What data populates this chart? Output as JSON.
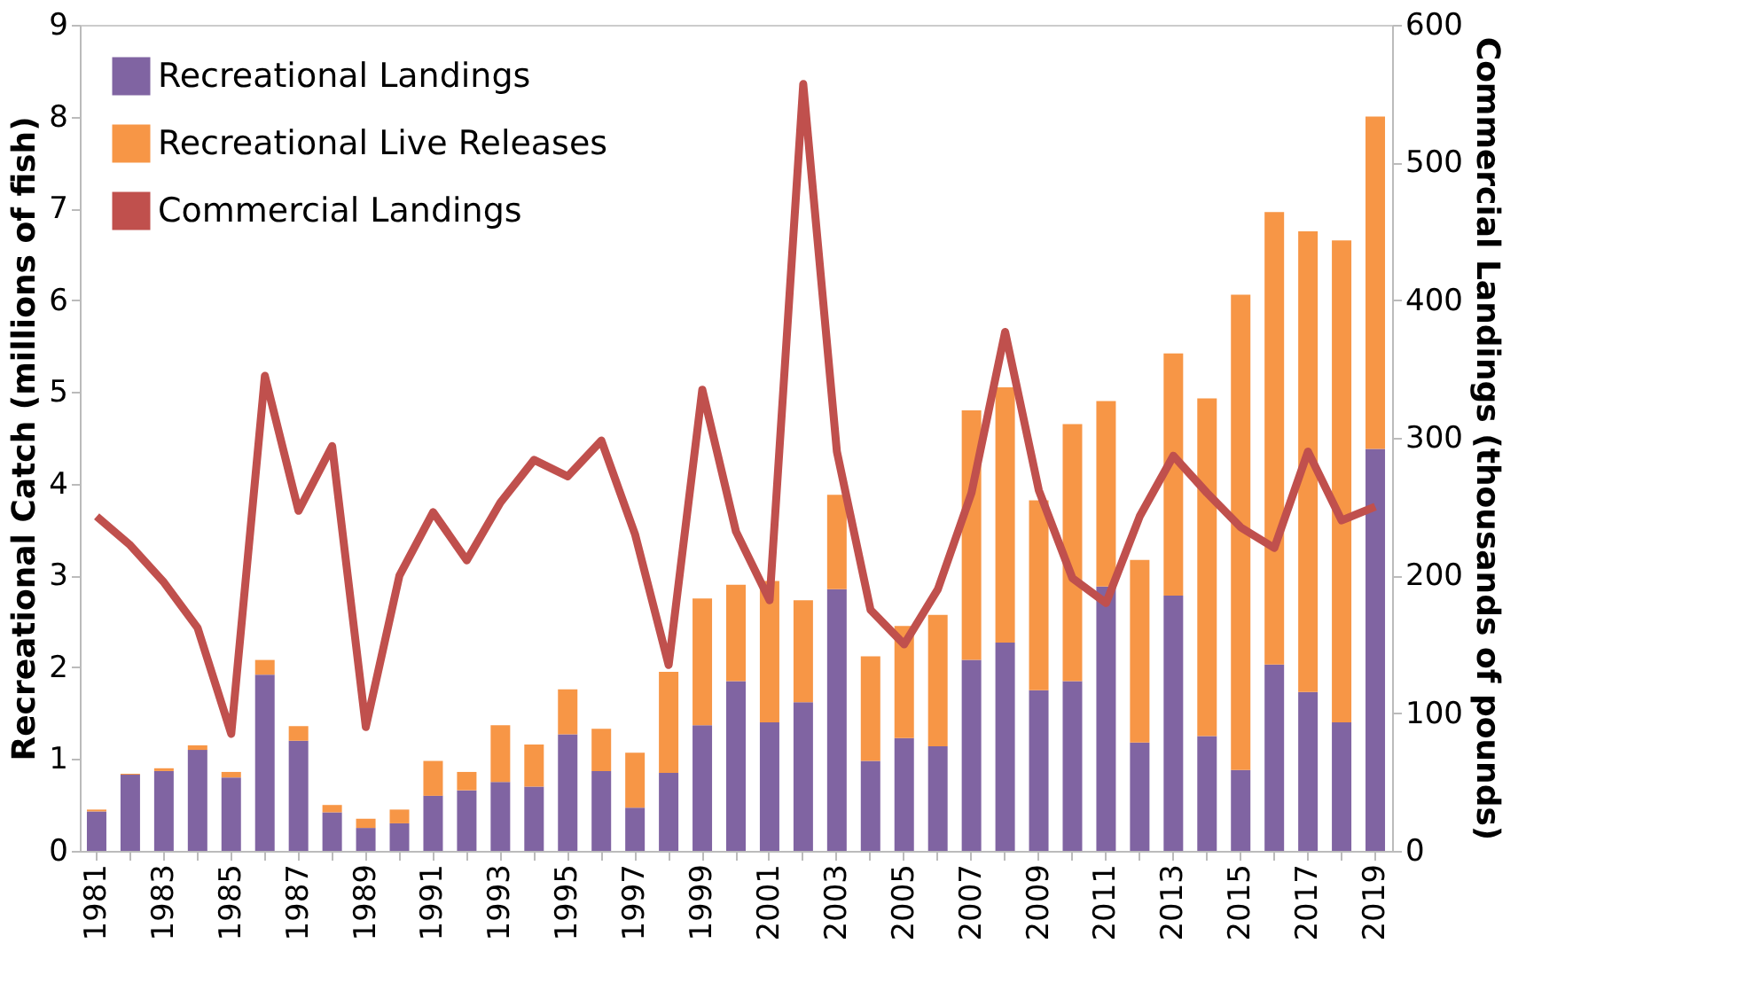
{
  "chart_data": {
    "type": "bar",
    "stacked": true,
    "ylabel": "Recreational Catch (millions of fish)",
    "y2label": "Commercial Landings (thousands of pounds)",
    "categories": [
      "1981",
      null,
      "1983",
      null,
      "1985",
      null,
      "1987",
      null,
      "1989",
      null,
      "1991",
      null,
      "1993",
      null,
      "1995",
      null,
      "1997",
      null,
      "1999",
      null,
      "2001",
      null,
      "2003",
      null,
      "2005",
      null,
      "2007",
      null,
      "2009",
      null,
      "2011",
      null,
      "2013",
      null,
      "2015",
      null,
      "2017",
      null,
      "2019"
    ],
    "series": [
      {
        "name": "Recreational Landings",
        "color": "#8064a2",
        "values": [
          0.43,
          0.83,
          0.87,
          1.1,
          0.8,
          1.92,
          1.2,
          0.42,
          0.25,
          0.3,
          0.6,
          0.66,
          0.75,
          0.7,
          1.27,
          0.87,
          0.47,
          0.85,
          1.37,
          1.85,
          1.4,
          1.62,
          2.85,
          0.98,
          1.23,
          1.14,
          2.08,
          2.27,
          1.75,
          1.85,
          2.88,
          1.18,
          2.78,
          1.25,
          0.88,
          2.03,
          1.73,
          1.4,
          4.38
        ]
      },
      {
        "name": "Recreational Live Releases",
        "color": "#f79646",
        "values": [
          0.02,
          0.01,
          0.03,
          0.05,
          0.06,
          0.16,
          0.16,
          0.08,
          0.1,
          0.15,
          0.38,
          0.2,
          0.62,
          0.46,
          0.49,
          0.46,
          0.6,
          1.1,
          1.38,
          1.05,
          1.54,
          1.11,
          1.03,
          1.14,
          1.22,
          1.43,
          2.72,
          2.78,
          2.07,
          2.8,
          2.02,
          1.99,
          2.64,
          3.68,
          5.18,
          4.93,
          5.02,
          5.25,
          3.62
        ]
      },
      {
        "name": "Commercial Landings",
        "type": "line",
        "axis": "y2",
        "color": "#c0504d",
        "values": [
          243,
          222,
          195,
          162,
          85,
          345,
          247,
          294,
          90,
          200,
          246,
          211,
          253,
          284,
          272,
          298,
          230,
          135,
          335,
          232,
          182,
          557,
          290,
          175,
          150,
          190,
          260,
          377,
          262,
          198,
          180,
          243,
          287,
          260,
          235,
          220,
          290,
          240,
          250
        ]
      }
    ],
    "ylim": [
      0,
      9
    ],
    "yticks": [
      0,
      1,
      2,
      3,
      4,
      5,
      6,
      7,
      8,
      9
    ],
    "y2lim": [
      0,
      600
    ],
    "y2ticks": [
      0,
      100,
      200,
      300,
      400,
      500,
      600
    ],
    "grid": false,
    "legend": "top left"
  }
}
